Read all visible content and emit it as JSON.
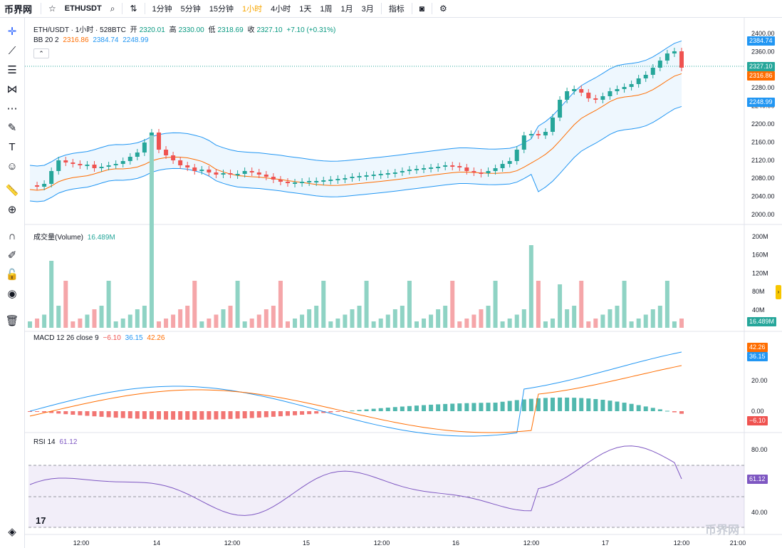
{
  "toolbar": {
    "logo": "币界网",
    "symbol": "ETHUSDT",
    "intervals": [
      "1分钟",
      "5分钟",
      "15分钟",
      "1小时",
      "4小时",
      "1天",
      "1周",
      "1月",
      "3月"
    ],
    "active_interval": "1小时",
    "indicators_label": "指标"
  },
  "legend": {
    "title": "ETH/USDT · 1小时 · 528BTC",
    "open_label": "开",
    "open": "2320.01",
    "high_label": "高",
    "high": "2330.00",
    "low_label": "低",
    "low": "2318.69",
    "close_label": "收",
    "close": "2327.10",
    "change": "+7.10 (+0.31%)",
    "bb_label": "BB 20 2",
    "bb_mid": "2316.86",
    "bb_upper": "2384.74",
    "bb_lower": "2248.99",
    "volume_label": "成交量(Volume)",
    "volume_value": "16.489M",
    "macd_label": "MACD 12 26 close 9",
    "macd_hist": "−6.10",
    "macd_line": "36.15",
    "macd_signal": "42.26",
    "rsi_label": "RSI 14",
    "rsi_value": "61.12"
  },
  "price_axis": [
    "2400.00",
    "2360.00",
    "2320.00",
    "2280.00",
    "2240.00",
    "2200.00",
    "2160.00",
    "2120.00",
    "2080.00",
    "2040.00",
    "2000.00"
  ],
  "volume_axis": [
    "200M",
    "160M",
    "120M",
    "80M",
    "40M"
  ],
  "macd_axis": [
    "20.00",
    "0.00"
  ],
  "rsi_axis": [
    "80.00",
    "40.00"
  ],
  "price_tags": {
    "upper": "2384.74",
    "close": "2327.10",
    "mid": "2316.86",
    "lower": "2248.99",
    "volume": "16.489M",
    "macd_signal": "42.26",
    "macd_line": "36.15",
    "macd_hist": "−6.10",
    "rsi": "61.12"
  },
  "time_axis": [
    "12:00",
    "14",
    "12:00",
    "15",
    "12:00",
    "16",
    "12:00",
    "17",
    "12:00",
    "21:00"
  ],
  "colors": {
    "up": "#26a69a",
    "down": "#ef5350",
    "up_vol": "#8fd3c4",
    "down_vol": "#f5a6a9",
    "bb": "#2196f3",
    "bb_mid": "#ff6d00",
    "rsi": "#7e57c2"
  },
  "icons": [
    "crosshair-icon",
    "trendline-icon",
    "fib-icon",
    "pattern-icon",
    "gann-icon",
    "brush-icon",
    "text-icon",
    "emoji-icon",
    "ruler-icon",
    "zoom-icon",
    "magnet-icon",
    "lock-draw-icon",
    "lock-icon",
    "eye-icon",
    "trash-icon",
    "layers-icon"
  ],
  "watermark": "币界网",
  "tv_logo": "17"
}
